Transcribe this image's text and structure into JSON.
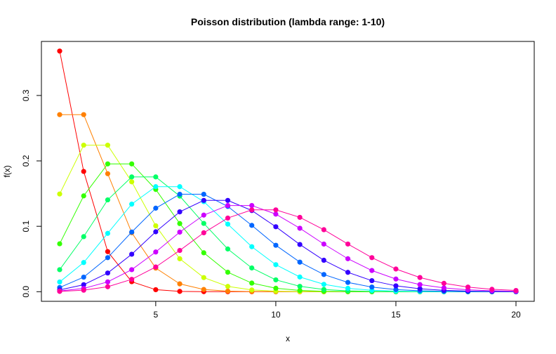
{
  "chart_data": {
    "type": "line",
    "title": "Poisson distribution (lambda range: 1-10)",
    "xlabel": "x",
    "ylabel": "f(x)",
    "xlim": [
      0.24,
      20.76
    ],
    "ylim": [
      -0.0147,
      0.3826
    ],
    "x_ticks": [
      5,
      10,
      15,
      20
    ],
    "y_ticks": [
      0.0,
      0.1,
      0.2,
      0.3
    ],
    "x_tick_labels": [
      "5",
      "10",
      "15",
      "20"
    ],
    "y_tick_labels": [
      "0.0",
      "0.1",
      "0.2",
      "0.3"
    ],
    "grid": false,
    "x": [
      1,
      2,
      3,
      4,
      5,
      6,
      7,
      8,
      9,
      10,
      11,
      12,
      13,
      14,
      15,
      16,
      17,
      18,
      19,
      20
    ],
    "series": [
      {
        "color": "#FF0000",
        "values": [
          0.3679,
          0.1839,
          0.0613,
          0.0153,
          0.0031,
          0.0005,
          0.0001,
          0,
          0,
          0,
          0,
          0,
          0,
          0,
          0,
          0,
          0,
          0,
          0,
          0
        ]
      },
      {
        "color": "#FF8000",
        "values": [
          0.2707,
          0.2707,
          0.1804,
          0.0902,
          0.0361,
          0.012,
          0.0034,
          0.0009,
          0.0002,
          0,
          0,
          0,
          0,
          0,
          0,
          0,
          0,
          0,
          0,
          0
        ]
      },
      {
        "color": "#CCFF00",
        "values": [
          0.1494,
          0.224,
          0.224,
          0.168,
          0.1008,
          0.0504,
          0.0216,
          0.0081,
          0.0027,
          0.0008,
          0.0002,
          0.0001,
          0,
          0,
          0,
          0,
          0,
          0,
          0,
          0
        ]
      },
      {
        "color": "#33FF00",
        "values": [
          0.0733,
          0.1465,
          0.1954,
          0.1954,
          0.1563,
          0.1042,
          0.0595,
          0.0298,
          0.0132,
          0.0053,
          0.0019,
          0.0006,
          0.0002,
          0.0001,
          0,
          0,
          0,
          0,
          0,
          0
        ]
      },
      {
        "color": "#00FF66",
        "values": [
          0.0337,
          0.0842,
          0.1404,
          0.1755,
          0.1755,
          0.1462,
          0.1044,
          0.0653,
          0.0363,
          0.0181,
          0.0082,
          0.0034,
          0.0013,
          0.0005,
          0.0002,
          0,
          0,
          0,
          0,
          0
        ]
      },
      {
        "color": "#00FFFF",
        "values": [
          0.0149,
          0.0446,
          0.0892,
          0.1339,
          0.1606,
          0.1606,
          0.1377,
          0.1033,
          0.0688,
          0.0413,
          0.0225,
          0.0113,
          0.0052,
          0.0022,
          0.0009,
          0.0003,
          0.0001,
          0,
          0,
          0
        ]
      },
      {
        "color": "#0066FF",
        "values": [
          0.0064,
          0.0223,
          0.0521,
          0.0912,
          0.1277,
          0.149,
          0.149,
          0.1304,
          0.1014,
          0.071,
          0.0452,
          0.0263,
          0.0142,
          0.0071,
          0.0033,
          0.0014,
          0.0006,
          0.0002,
          0.0001,
          0
        ]
      },
      {
        "color": "#3300FF",
        "values": [
          0.0027,
          0.0107,
          0.0286,
          0.0573,
          0.0916,
          0.1221,
          0.1396,
          0.1396,
          0.1241,
          0.0993,
          0.0722,
          0.0481,
          0.0296,
          0.0169,
          0.009,
          0.0045,
          0.0021,
          0.0009,
          0.0004,
          0.0002
        ]
      },
      {
        "color": "#CC00FF",
        "values": [
          0.0011,
          0.005,
          0.015,
          0.0337,
          0.0607,
          0.0911,
          0.1171,
          0.1318,
          0.1318,
          0.1186,
          0.097,
          0.0728,
          0.0504,
          0.0324,
          0.0194,
          0.0109,
          0.0058,
          0.0029,
          0.0014,
          0.0006
        ]
      },
      {
        "color": "#FF0099",
        "values": [
          0.0005,
          0.0023,
          0.0076,
          0.0189,
          0.0378,
          0.0631,
          0.0901,
          0.1126,
          0.1251,
          0.1251,
          0.1137,
          0.0948,
          0.0729,
          0.0521,
          0.0347,
          0.0217,
          0.0128,
          0.0071,
          0.0037,
          0.0019
        ]
      }
    ]
  }
}
